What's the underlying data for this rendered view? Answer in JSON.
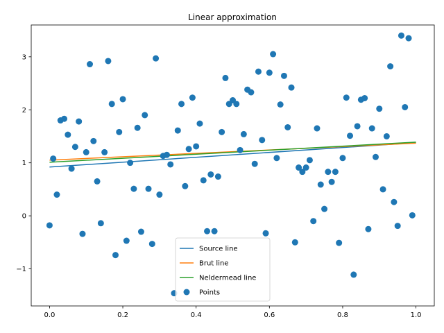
{
  "chart_data": {
    "type": "scatter",
    "title": "Linear approximation",
    "xlabel": "",
    "ylabel": "",
    "xlim": [
      -0.05,
      1.05
    ],
    "ylim": [
      -1.7,
      3.6
    ],
    "xticks": [
      "0.0",
      "0.2",
      "0.4",
      "0.6",
      "0.8",
      "1.0"
    ],
    "xtick_values": [
      0.0,
      0.2,
      0.4,
      0.6,
      0.8,
      1.0
    ],
    "yticks": [
      "−1",
      "0",
      "1",
      "2",
      "3"
    ],
    "ytick_values": [
      -1,
      0,
      1,
      2,
      3
    ],
    "grid": false,
    "legend_position": "lower center",
    "lines": [
      {
        "name": "Source line",
        "color": "#1f77b4",
        "x": [
          0.0,
          1.0
        ],
        "y": [
          0.92,
          1.38
        ]
      },
      {
        "name": "Brut line",
        "color": "#ff7f0e",
        "x": [
          0.0,
          1.0
        ],
        "y": [
          1.05,
          1.37
        ]
      },
      {
        "name": "Neldermead line",
        "color": "#2ca02c",
        "x": [
          0.0,
          1.0
        ],
        "y": [
          1.01,
          1.39
        ]
      }
    ],
    "points": {
      "name": "Points",
      "color": "#1f77b4",
      "x": [
        0.0,
        0.01,
        0.02,
        0.03,
        0.04,
        0.05,
        0.06,
        0.07,
        0.08,
        0.09,
        0.1,
        0.11,
        0.12,
        0.13,
        0.14,
        0.15,
        0.16,
        0.17,
        0.18,
        0.19,
        0.2,
        0.21,
        0.22,
        0.23,
        0.24,
        0.25,
        0.26,
        0.27,
        0.28,
        0.29,
        0.3,
        0.31,
        0.32,
        0.33,
        0.34,
        0.35,
        0.36,
        0.37,
        0.38,
        0.39,
        0.4,
        0.41,
        0.42,
        0.43,
        0.44,
        0.45,
        0.46,
        0.47,
        0.48,
        0.49,
        0.5,
        0.51,
        0.52,
        0.53,
        0.54,
        0.55,
        0.56,
        0.57,
        0.58,
        0.59,
        0.6,
        0.61,
        0.62,
        0.63,
        0.64,
        0.65,
        0.66,
        0.67,
        0.68,
        0.69,
        0.7,
        0.71,
        0.72,
        0.73,
        0.74,
        0.75,
        0.76,
        0.77,
        0.78,
        0.79,
        0.8,
        0.81,
        0.82,
        0.83,
        0.84,
        0.85,
        0.86,
        0.87,
        0.88,
        0.89,
        0.9,
        0.91,
        0.92,
        0.93,
        0.94,
        0.95,
        0.96,
        0.97,
        0.98,
        0.99
      ],
      "y": [
        -0.18,
        1.08,
        0.4,
        1.8,
        1.83,
        1.53,
        0.89,
        1.3,
        1.78,
        -0.34,
        1.2,
        2.86,
        1.41,
        0.65,
        -0.14,
        1.2,
        2.92,
        2.11,
        -0.74,
        1.58,
        2.2,
        -0.47,
        1.0,
        0.51,
        1.66,
        -0.3,
        1.9,
        0.51,
        -0.53,
        2.97,
        0.4,
        1.13,
        1.15,
        0.97,
        -1.46,
        1.61,
        2.11,
        0.56,
        1.26,
        2.23,
        1.31,
        1.74,
        0.67,
        -0.29,
        0.78,
        -0.29,
        0.74,
        1.58,
        2.6,
        2.11,
        2.18,
        2.11,
        1.24,
        1.54,
        2.38,
        2.33,
        0.98,
        2.72,
        1.43,
        -0.33,
        2.7,
        3.05,
        1.09,
        2.1,
        2.64,
        1.67,
        2.42,
        -0.5,
        0.91,
        0.83,
        0.91,
        1.05,
        -0.1,
        1.65,
        0.59,
        0.13,
        0.83,
        0.64,
        0.83,
        -0.51,
        1.09,
        2.23,
        1.51,
        -1.11,
        1.69,
        2.19,
        2.22,
        -0.25,
        1.65,
        1.11,
        2.02,
        0.5,
        1.5,
        2.82,
        0.26,
        -0.19,
        3.4,
        2.05,
        3.35,
        0.01
      ]
    }
  }
}
